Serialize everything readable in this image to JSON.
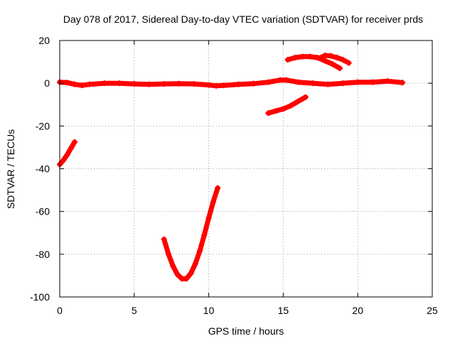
{
  "chart_data": {
    "type": "scatter",
    "title": "Day 078 of 2017, Sidereal Day-to-day VTEC variation (SDTVAR) for receiver prds",
    "xlabel": "GPS time / hours",
    "ylabel": "SDTVAR / TECUs",
    "xlim": [
      0,
      25
    ],
    "ylim": [
      -100,
      20
    ],
    "xticks": [
      0,
      5,
      10,
      15,
      20,
      25
    ],
    "yticks": [
      -100,
      -80,
      -60,
      -40,
      -20,
      0,
      20
    ],
    "grid": true,
    "marker_color": "#ff0000",
    "series": [
      {
        "name": "main-near-zero",
        "x": [
          0,
          0.5,
          1.0,
          1.5,
          2,
          3,
          4,
          5,
          6,
          7,
          8,
          9,
          10,
          10.5,
          11,
          12,
          13,
          14,
          14.8,
          15.2,
          16,
          17,
          18,
          19,
          20,
          21,
          22,
          23
        ],
        "y": [
          0.5,
          0.3,
          -0.5,
          -1,
          -0.5,
          0,
          0,
          -0.3,
          -0.5,
          -0.3,
          -0.2,
          -0.3,
          -0.8,
          -1.2,
          -1.0,
          -0.5,
          -0.2,
          0.5,
          1.5,
          1.5,
          0.5,
          0,
          -0.5,
          0,
          0.5,
          0.5,
          1,
          0.3
        ]
      },
      {
        "name": "early-rise",
        "x": [
          0,
          0.25,
          0.5,
          0.75,
          1.0
        ],
        "y": [
          -38,
          -36,
          -33.5,
          -30.5,
          -27.5
        ]
      },
      {
        "name": "dip-arc",
        "x": [
          7.0,
          7.3,
          7.6,
          7.9,
          8.2,
          8.5,
          8.8,
          9.1,
          9.4,
          9.7,
          10.0,
          10.3,
          10.6
        ],
        "y": [
          -73,
          -80,
          -85.5,
          -89.5,
          -91.5,
          -91.5,
          -89,
          -84.5,
          -78.5,
          -71,
          -63,
          -55.5,
          -49
        ]
      },
      {
        "name": "afternoon-rise",
        "x": [
          14.0,
          14.5,
          15.0,
          15.5,
          16.0,
          16.5
        ],
        "y": [
          -14,
          -13,
          -12,
          -10.5,
          -8.5,
          -6.5
        ]
      },
      {
        "name": "upper-arc-a",
        "x": [
          15.3,
          15.8,
          16.3,
          16.8,
          17.3,
          17.8,
          18.3,
          18.8
        ],
        "y": [
          11,
          12,
          12.5,
          12.5,
          12,
          10.5,
          9,
          7
        ]
      },
      {
        "name": "upper-arc-b",
        "x": [
          17.5,
          17.8,
          18.2,
          18.6,
          19.0,
          19.4
        ],
        "y": [
          12,
          13,
          12.8,
          12,
          11,
          9.5
        ]
      }
    ]
  }
}
